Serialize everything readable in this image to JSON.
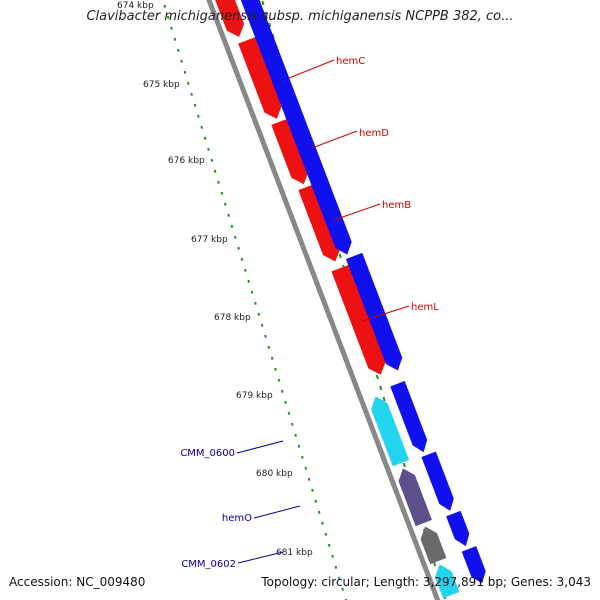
{
  "title": "Clavibacter michiganensis subsp. michiganensis NCPPB 382, co...",
  "footer": {
    "accession": "Accession: NC_009480",
    "summary": "Topology: circular; Length: 3,297,891 bp; Genes: 3,043"
  },
  "colors": {
    "forward_gene": "#1010ee",
    "reverse_gene_red": "#ee1111",
    "cyan_gene": "#22d4ee",
    "purple_gene": "#5c4f8c",
    "gray_gene": "#6a6a6a",
    "backbone": "#888888",
    "tick": "#2a8a2a",
    "red_label": "#cc0000",
    "blue_label": "#000099"
  },
  "scale_labels": [
    "674 kbp",
    "675 kbp",
    "676 kbp",
    "677 kbp",
    "678 kbp",
    "679 kbp",
    "680 kbp",
    "681 kbp"
  ],
  "gene_labels": [
    {
      "text": "hemC",
      "color": "red"
    },
    {
      "text": "hemD",
      "color": "red"
    },
    {
      "text": "hemB",
      "color": "red"
    },
    {
      "text": "hemL",
      "color": "red"
    },
    {
      "text": "CMM_0600",
      "color": "blue"
    },
    {
      "text": "hemO",
      "color": "blue"
    },
    {
      "text": "CMM_0602",
      "color": "blue"
    }
  ]
}
